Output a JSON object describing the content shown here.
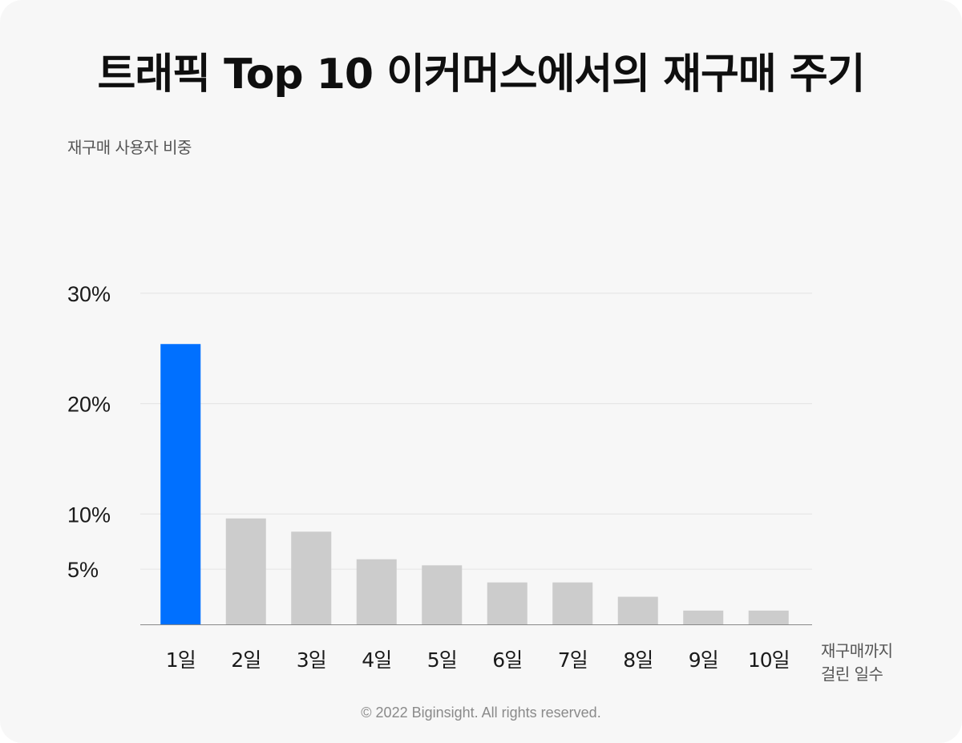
{
  "chart_data": {
    "type": "bar",
    "title": "트래픽 Top 10 이커머스에서의 재구매 주기",
    "ylabel": "재구매 사용자 비중",
    "xlabel_lines": [
      "재구매까지",
      "걸린 일수"
    ],
    "categories": [
      "1일",
      "2일",
      "3일",
      "4일",
      "5일",
      "6일",
      "7일",
      "8일",
      "9일",
      "10일"
    ],
    "values": [
      25.4,
      9.6,
      8.4,
      5.9,
      5.35,
      3.8,
      3.8,
      2.5,
      1.25,
      1.25
    ],
    "highlight_index": 0,
    "y_ticks": [
      {
        "value": 5,
        "label": "5%"
      },
      {
        "value": 10,
        "label": "10%"
      },
      {
        "value": 20,
        "label": "20%"
      },
      {
        "value": 30,
        "label": "30%"
      }
    ],
    "ylim": [
      0,
      30
    ],
    "grid": true,
    "colors": {
      "highlight": "#0070ff",
      "bar": "#cccccc",
      "grid": "#e4e4e4",
      "axis": "#888888"
    }
  },
  "footer": "© 2022 Biginsight. All rights reserved."
}
